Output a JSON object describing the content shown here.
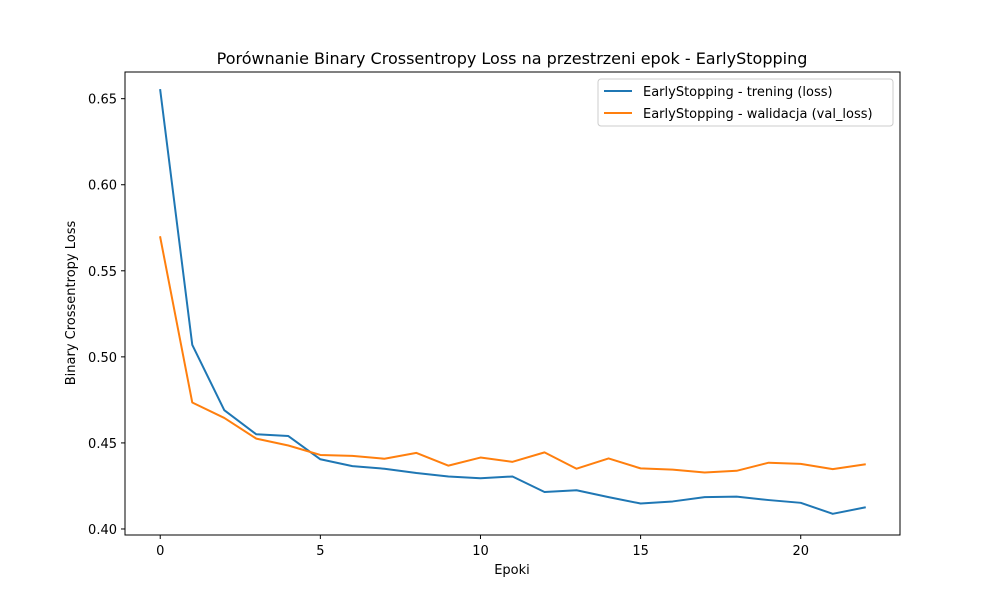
{
  "chart_data": {
    "type": "line",
    "title": "Porównanie Binary Crossentropy Loss na przestrzeni epok - EarlyStopping",
    "xlabel": "Epoki",
    "ylabel": "Binary Crossentropy Loss",
    "xlim": [
      -1.1,
      23.1
    ],
    "ylim": [
      0.3965,
      0.6655
    ],
    "xticks": [
      {
        "value": 0,
        "label": "0"
      },
      {
        "value": 5,
        "label": "5"
      },
      {
        "value": 10,
        "label": "10"
      },
      {
        "value": 15,
        "label": "15"
      },
      {
        "value": 20,
        "label": "20"
      }
    ],
    "yticks": [
      {
        "value": 0.4,
        "label": "0.40"
      },
      {
        "value": 0.45,
        "label": "0.45"
      },
      {
        "value": 0.5,
        "label": "0.50"
      },
      {
        "value": 0.55,
        "label": "0.55"
      },
      {
        "value": 0.6,
        "label": "0.60"
      },
      {
        "value": 0.65,
        "label": "0.65"
      }
    ],
    "grid": false,
    "legend_position": "top-right",
    "x": [
      0,
      1,
      2,
      3,
      4,
      5,
      6,
      7,
      8,
      9,
      10,
      11,
      12,
      13,
      14,
      15,
      16,
      17,
      18,
      19,
      20,
      21,
      22
    ],
    "series": [
      {
        "name": "EarlyStopping - trening (loss)",
        "color": "#1f77b4",
        "values": [
          0.655,
          0.507,
          0.469,
          0.455,
          0.454,
          0.4405,
          0.4365,
          0.435,
          0.4325,
          0.4305,
          0.4295,
          0.4305,
          0.4215,
          0.4225,
          0.4185,
          0.4148,
          0.416,
          0.4185,
          0.4188,
          0.4168,
          0.4152,
          0.4088,
          0.4125
        ]
      },
      {
        "name": "EarlyStopping - walidacja (val_loss)",
        "color": "#ff7f0e",
        "values": [
          0.5695,
          0.4735,
          0.4645,
          0.4525,
          0.4485,
          0.443,
          0.4425,
          0.4408,
          0.4442,
          0.4368,
          0.4415,
          0.439,
          0.4445,
          0.435,
          0.441,
          0.4352,
          0.4345,
          0.4328,
          0.4338,
          0.4385,
          0.4378,
          0.4348,
          0.4375
        ]
      }
    ]
  }
}
